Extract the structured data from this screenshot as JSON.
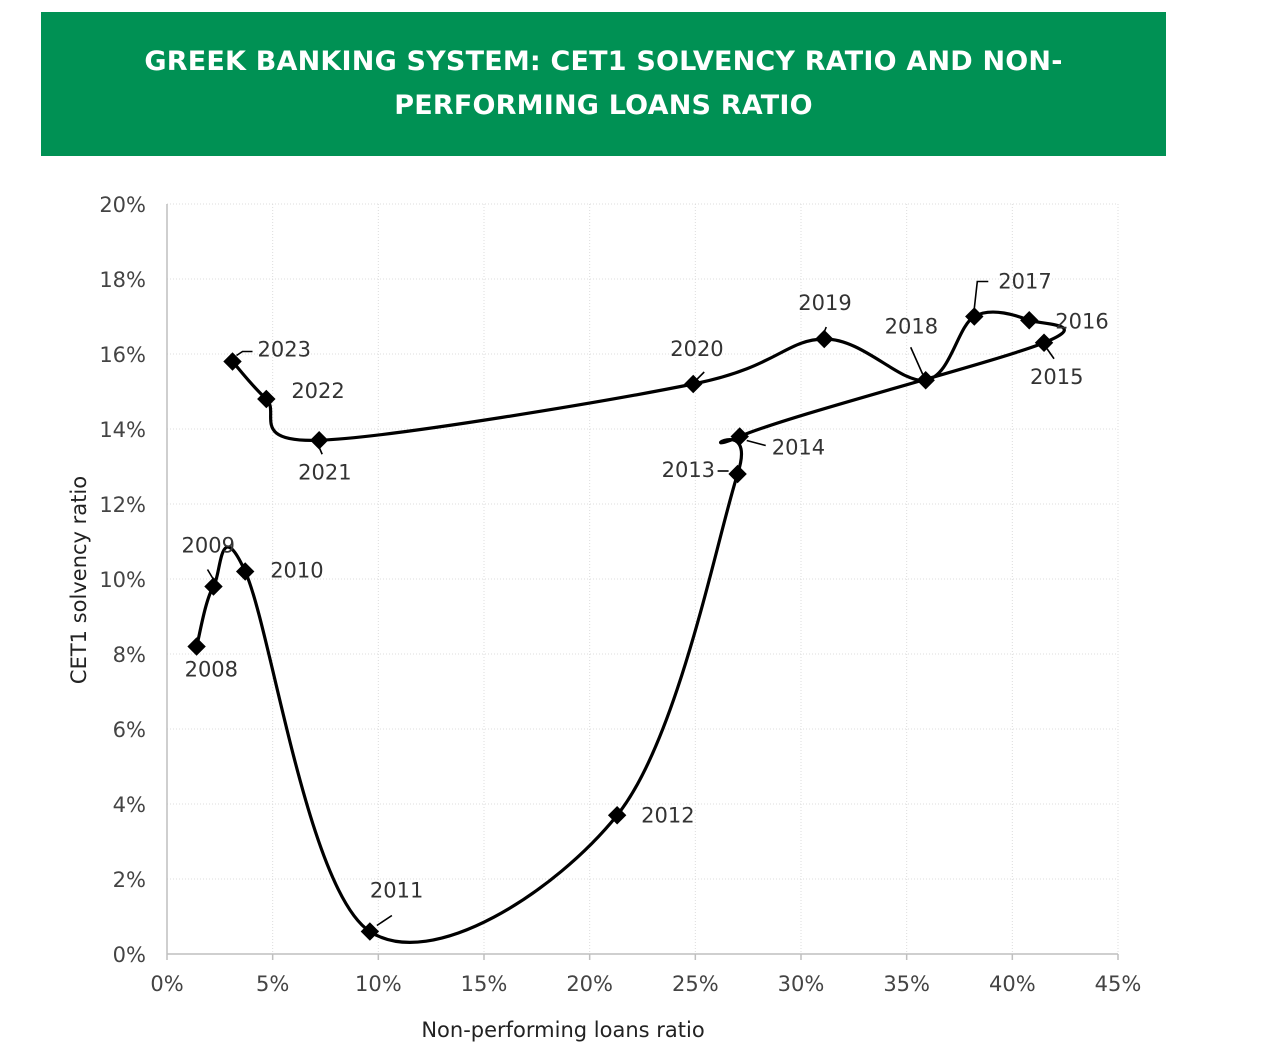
{
  "header": {
    "title": "GREEK BANKING SYSTEM: CET1 SOLVENCY RATIO AND NON-PERFORMING LOANS RATIO",
    "background_color": "#009154"
  },
  "chart_data": {
    "type": "scatter",
    "connected": true,
    "smooth": true,
    "marker": "diamond",
    "title": "GREEK BANKING SYSTEM: CET1 SOLVENCY RATIO AND NON-PERFORMING LOANS RATIO",
    "xlabel": "Non-performing loans ratio",
    "ylabel": "CET1 solvency ratio",
    "xlim": [
      0,
      45
    ],
    "ylim": [
      0,
      20
    ],
    "x_unit": "%",
    "y_unit": "%",
    "x_ticks": [
      "0%",
      "5%",
      "10%",
      "15%",
      "20%",
      "25%",
      "30%",
      "35%",
      "40%",
      "45%"
    ],
    "y_ticks": [
      "0%",
      "2%",
      "4%",
      "6%",
      "8%",
      "10%",
      "12%",
      "14%",
      "16%",
      "18%",
      "20%"
    ],
    "grid": true,
    "line_color": "#000000",
    "points": [
      {
        "label": "2008",
        "x": 1.4,
        "y": 8.2
      },
      {
        "label": "2009",
        "x": 2.2,
        "y": 9.8
      },
      {
        "label": "2010",
        "x": 3.7,
        "y": 10.2
      },
      {
        "label": "2011",
        "x": 9.6,
        "y": 0.6
      },
      {
        "label": "2012",
        "x": 21.3,
        "y": 3.7
      },
      {
        "label": "2013",
        "x": 27.0,
        "y": 12.8
      },
      {
        "label": "2014",
        "x": 27.1,
        "y": 13.8
      },
      {
        "label": "2015",
        "x": 41.5,
        "y": 16.3
      },
      {
        "label": "2016",
        "x": 40.8,
        "y": 16.9
      },
      {
        "label": "2017",
        "x": 38.2,
        "y": 17.0
      },
      {
        "label": "2018",
        "x": 35.9,
        "y": 15.3
      },
      {
        "label": "2019",
        "x": 31.1,
        "y": 16.4
      },
      {
        "label": "2020",
        "x": 24.9,
        "y": 15.2
      },
      {
        "label": "2021",
        "x": 7.2,
        "y": 13.7
      },
      {
        "label": "2022",
        "x": 4.7,
        "y": 14.8
      },
      {
        "label": "2023",
        "x": 3.1,
        "y": 15.8
      }
    ]
  }
}
